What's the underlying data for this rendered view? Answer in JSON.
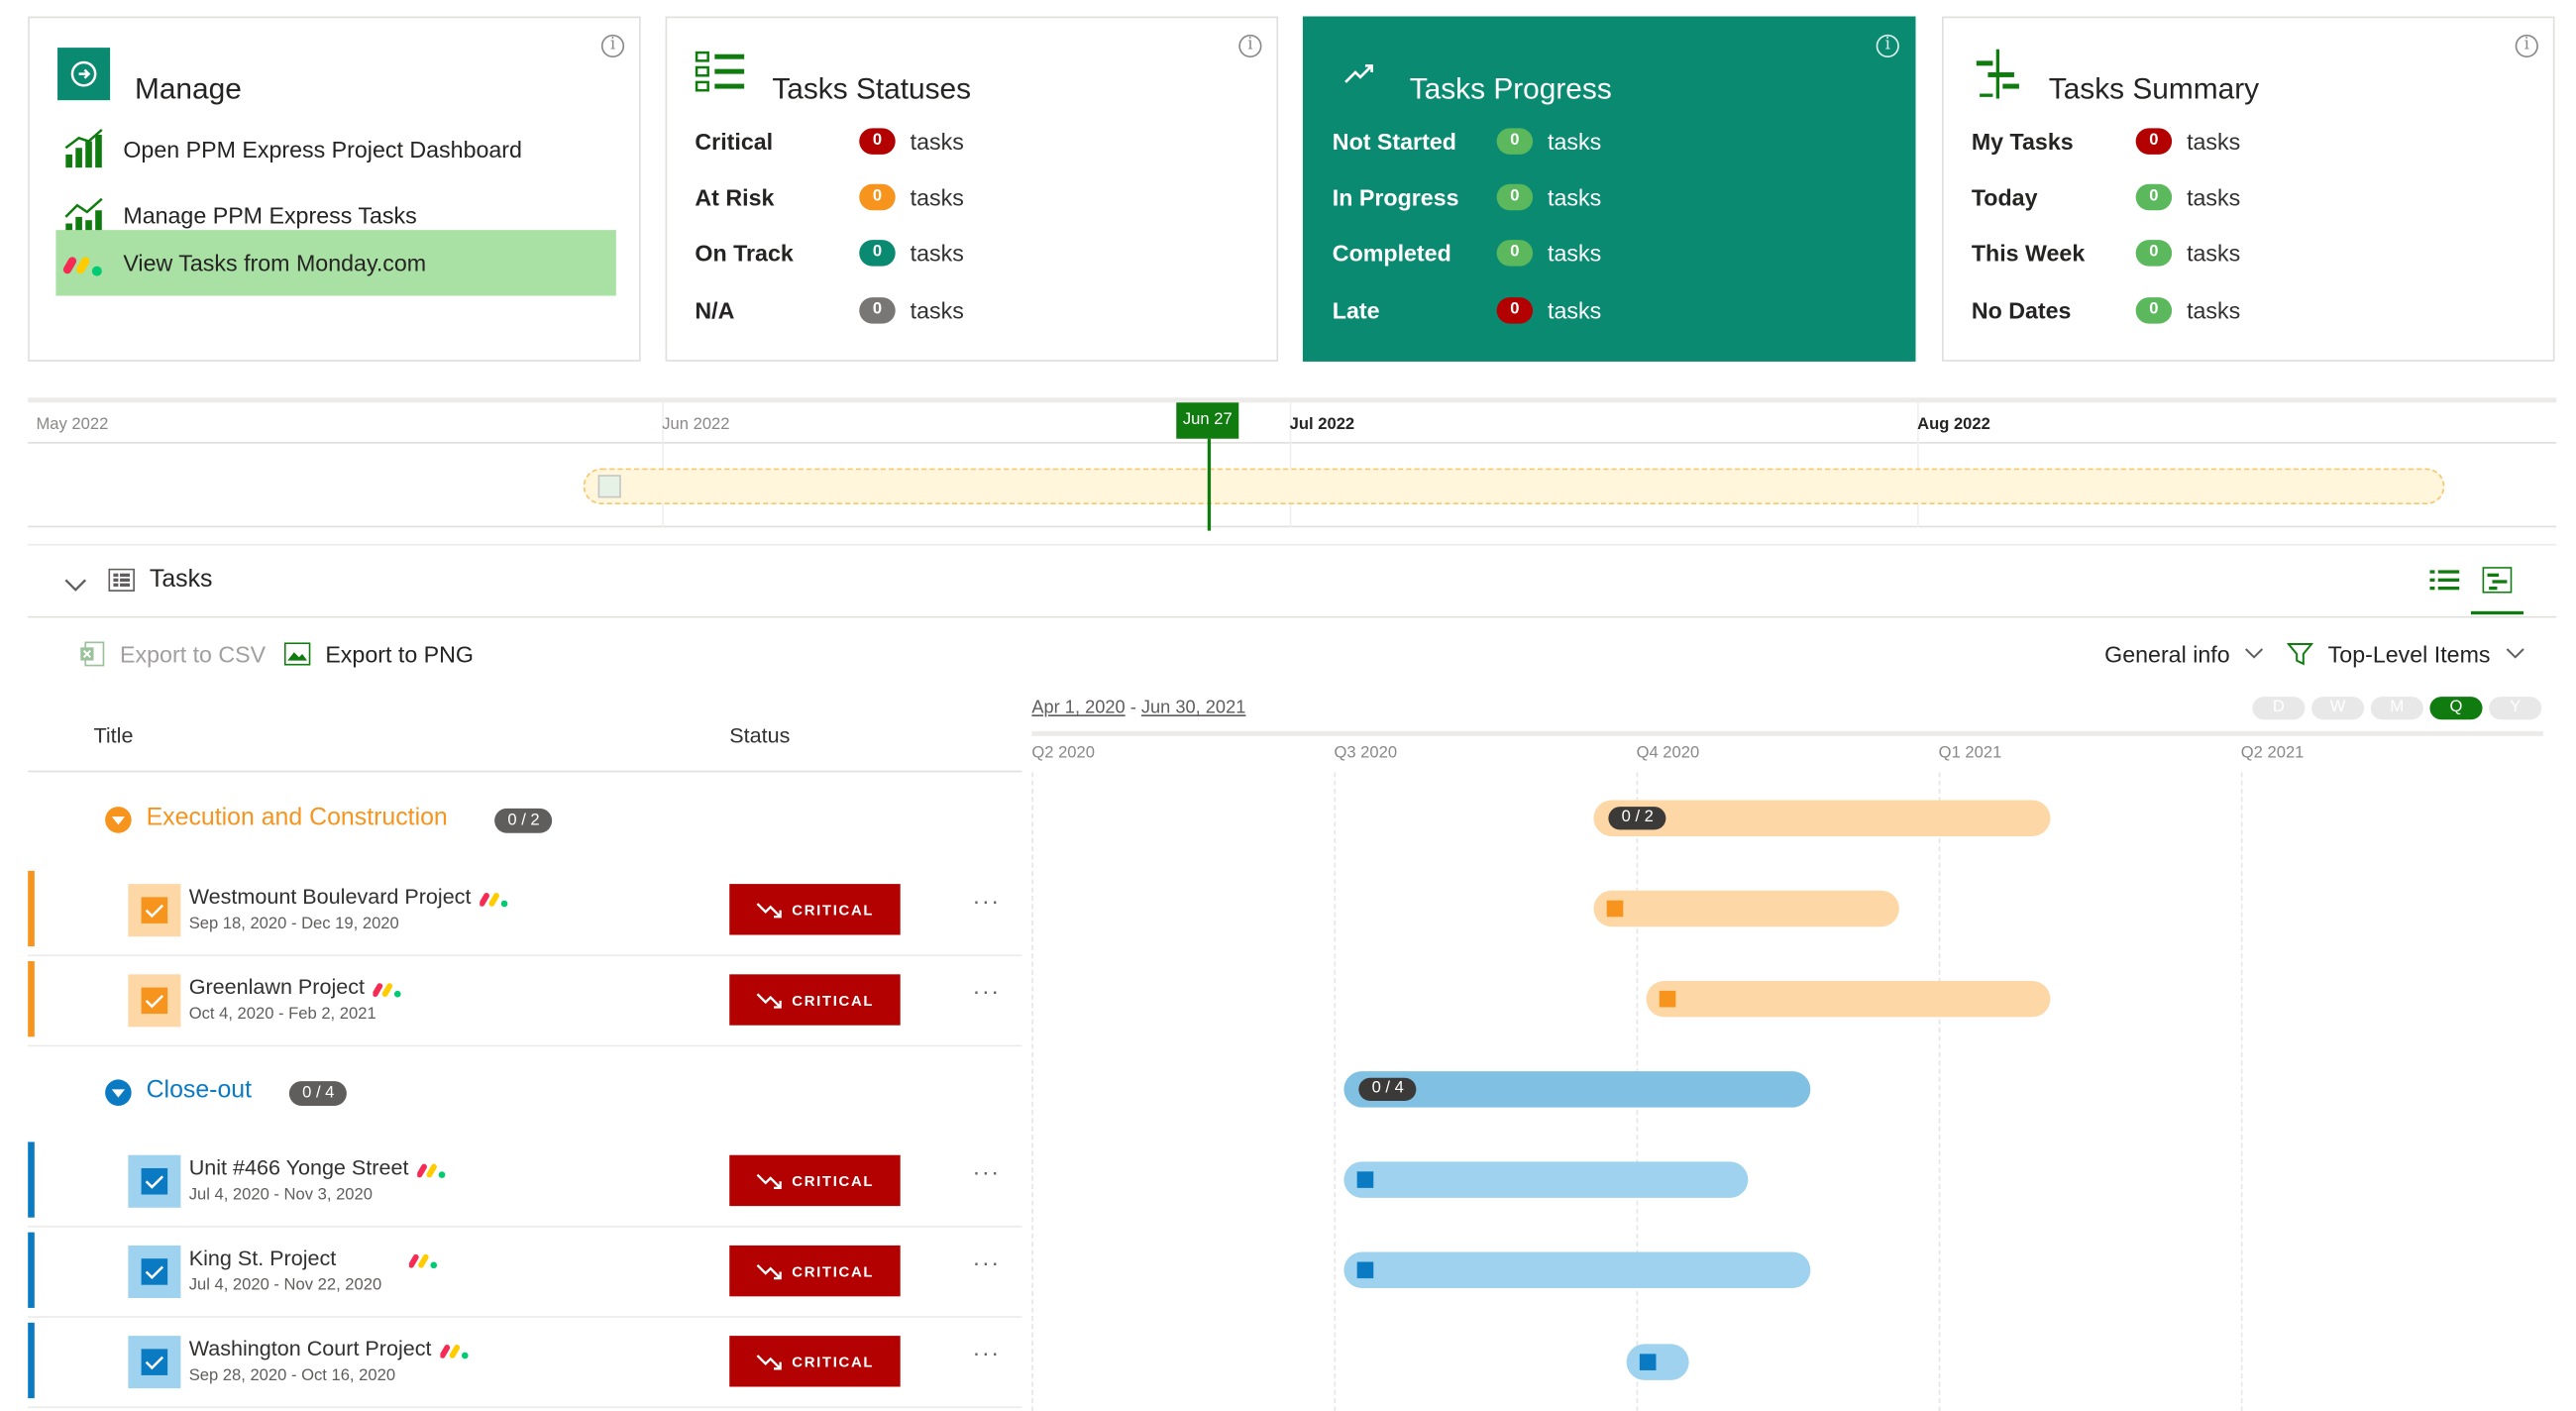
{
  "colors": {
    "accent": "#107c10",
    "progress_card": "#0b8a72",
    "critical": "#b30000",
    "at_risk": "#f7941d",
    "on_track": "#0b8a72",
    "na": "#797775",
    "green_pill": "#5cb85c",
    "orange_group": "#f7941d",
    "blue_group": "#0a7bc2",
    "bar_orange": "#fdd8a6",
    "bar_blue_summary": "#7fc0e3",
    "bar_blue": "#9ed2ee"
  },
  "manage": {
    "title": "Manage",
    "links": [
      {
        "label": "Open PPM Express Project Dashboard",
        "icon": "bar-chart-icon"
      },
      {
        "label": "Manage PPM Express Tasks",
        "icon": "trend-chart-icon"
      },
      {
        "label": "View Tasks from Monday.com",
        "icon": "monday-logo-icon"
      }
    ]
  },
  "statuses": {
    "title": "Tasks Statuses",
    "rows": [
      {
        "label": "Critical",
        "count": "0",
        "unit": "tasks"
      },
      {
        "label": "At Risk",
        "count": "0",
        "unit": "tasks"
      },
      {
        "label": "On Track",
        "count": "0",
        "unit": "tasks"
      },
      {
        "label": "N/A",
        "count": "0",
        "unit": "tasks"
      }
    ]
  },
  "progress": {
    "title": "Tasks Progress",
    "rows": [
      {
        "label": "Not Started",
        "count": "0",
        "unit": "tasks"
      },
      {
        "label": "In Progress",
        "count": "0",
        "unit": "tasks"
      },
      {
        "label": "Completed",
        "count": "0",
        "unit": "tasks"
      },
      {
        "label": "Late",
        "count": "0",
        "unit": "tasks"
      }
    ]
  },
  "summary": {
    "title": "Tasks Summary",
    "rows": [
      {
        "label": "My Tasks",
        "count": "0",
        "unit": "tasks"
      },
      {
        "label": "Today",
        "count": "0",
        "unit": "tasks"
      },
      {
        "label": "This Week",
        "count": "0",
        "unit": "tasks"
      },
      {
        "label": "No Dates",
        "count": "0",
        "unit": "tasks"
      }
    ]
  },
  "timeline": {
    "months": [
      "May 2022",
      "Jun 2022",
      "Jul 2022",
      "Aug 2022"
    ],
    "today": "Jun 27"
  },
  "tasks_section": {
    "title": "Tasks",
    "export_csv": "Export to CSV",
    "export_png": "Export to PNG",
    "general_info": "General info",
    "top_level": "Top-Level Items",
    "col_title": "Title",
    "col_status": "Status",
    "range_start": "Apr 1, 2020",
    "range_sep": " - ",
    "range_end": "Jun 30, 2021",
    "zoom": [
      "D",
      "W",
      "M",
      "Q",
      "Y"
    ],
    "zoom_selected": "Q",
    "quarters": [
      "Q2 2020",
      "Q3 2020",
      "Q4 2020",
      "Q1 2021",
      "Q2 2021"
    ]
  },
  "groups": [
    {
      "name": "Execution and Construction",
      "count": "0 / 2",
      "tasks": [
        {
          "name": "Westmount Boulevard Project",
          "dates": "Sep 18, 2020 - Dec 19, 2020",
          "status": "CRITICAL",
          "more": "···"
        },
        {
          "name": "Greenlawn Project",
          "dates": "Oct 4, 2020 - Feb 2, 2021",
          "status": "CRITICAL",
          "more": "···"
        }
      ]
    },
    {
      "name": "Close-out",
      "count": "0 / 4",
      "tasks": [
        {
          "name": "Unit #466 Yonge Street",
          "dates": "Jul 4, 2020 - Nov 3, 2020",
          "status": "CRITICAL",
          "more": "···"
        },
        {
          "name": "King St. Project",
          "dates": "Jul 4, 2020 - Nov 22, 2020",
          "status": "CRITICAL",
          "more": "···"
        },
        {
          "name": "Washington Court Project",
          "dates": "Sep 28, 2020 - Oct 16, 2020",
          "status": "CRITICAL",
          "more": "···"
        }
      ]
    }
  ]
}
